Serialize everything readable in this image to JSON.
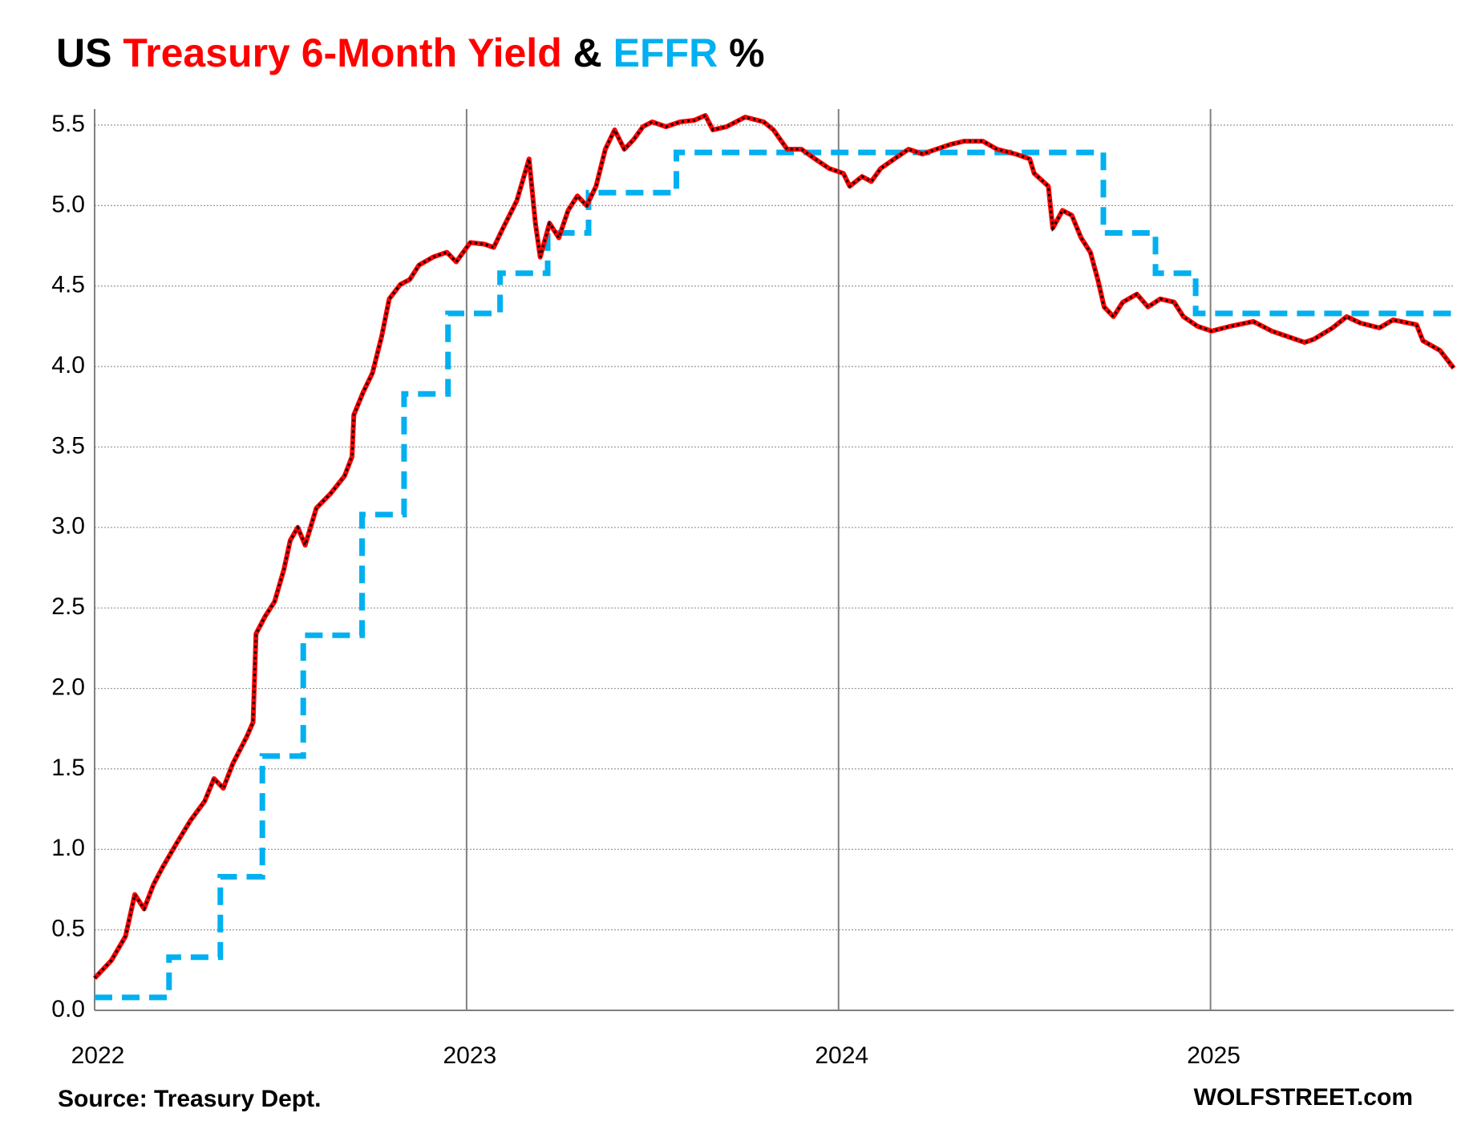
{
  "chart_data": {
    "type": "line",
    "title_parts": [
      "US",
      "&",
      "%"
    ],
    "source": "Source: Treasury Dept.",
    "watermark": "WOLFSTREET.com",
    "xlim": [
      2022,
      2025.654
    ],
    "xticks": [
      2022,
      2023,
      2024,
      2025
    ],
    "ylim": [
      0,
      5.5
    ],
    "yticks": [
      {
        "value": 0,
        "label": "0.0"
      },
      0.5,
      {
        "value": 1,
        "label": "1.0"
      },
      1.5,
      {
        "value": 2,
        "label": "2.0"
      },
      2.5,
      {
        "value": 3,
        "label": "3.0"
      },
      3.5,
      {
        "value": 4,
        "label": "4.0"
      },
      4.5,
      {
        "value": 5,
        "label": "5.0"
      },
      5.5
    ],
    "grid": true,
    "series": [
      {
        "name": "Treasury 6-Month Yield",
        "color": "#ff0000",
        "x": [
          2022.0,
          2022.045,
          2022.083,
          2022.108,
          2022.133,
          2022.158,
          2022.183,
          2022.221,
          2022.258,
          2022.296,
          2022.321,
          2022.346,
          2022.371,
          2022.409,
          2022.426,
          2022.434,
          2022.459,
          2022.484,
          2022.509,
          2022.526,
          2022.546,
          2022.566,
          2022.596,
          2022.634,
          2022.672,
          2022.692,
          2022.697,
          2022.722,
          2022.747,
          2022.772,
          2022.792,
          2022.822,
          2022.847,
          2022.872,
          2022.91,
          2022.947,
          2022.972,
          2023.01,
          2023.048,
          2023.073,
          2023.098,
          2023.135,
          2023.168,
          2023.185,
          2023.198,
          2023.223,
          2023.248,
          2023.273,
          2023.298,
          2023.323,
          2023.348,
          2023.373,
          2023.398,
          2023.424,
          2023.449,
          2023.474,
          2023.499,
          2023.536,
          2023.574,
          2023.612,
          2023.642,
          2023.662,
          2023.699,
          2023.749,
          2023.799,
          2023.825,
          2023.862,
          2023.9,
          2023.937,
          2023.975,
          2024.013,
          2024.03,
          2024.063,
          2024.088,
          2024.113,
          2024.15,
          2024.188,
          2024.226,
          2024.263,
          2024.301,
          2024.338,
          2024.388,
          2024.426,
          2024.476,
          2024.514,
          2024.526,
          2024.564,
          2024.576,
          2024.602,
          2024.627,
          2024.652,
          2024.677,
          2024.697,
          2024.714,
          2024.739,
          2024.764,
          2024.802,
          2024.832,
          2024.865,
          2024.902,
          2024.927,
          2024.965,
          2025.003,
          2025.053,
          2025.115,
          2025.165,
          2025.203,
          2025.253,
          2025.278,
          2025.328,
          2025.366,
          2025.403,
          2025.454,
          2025.491,
          2025.554,
          2025.571,
          2025.617,
          2025.654
        ],
        "values": [
          0.2,
          0.31,
          0.46,
          0.72,
          0.63,
          0.78,
          0.89,
          1.04,
          1.18,
          1.3,
          1.44,
          1.38,
          1.53,
          1.7,
          1.79,
          2.34,
          2.45,
          2.54,
          2.74,
          2.92,
          3.0,
          2.89,
          3.12,
          3.21,
          3.32,
          3.44,
          3.7,
          3.84,
          3.96,
          4.19,
          4.42,
          4.51,
          4.54,
          4.63,
          4.68,
          4.71,
          4.65,
          4.77,
          4.76,
          4.74,
          4.86,
          5.03,
          5.29,
          4.89,
          4.68,
          4.89,
          4.8,
          4.97,
          5.06,
          5.0,
          5.12,
          5.35,
          5.47,
          5.35,
          5.41,
          5.49,
          5.52,
          5.49,
          5.52,
          5.53,
          5.56,
          5.47,
          5.49,
          5.55,
          5.52,
          5.47,
          5.35,
          5.35,
          5.29,
          5.23,
          5.2,
          5.12,
          5.18,
          5.15,
          5.23,
          5.29,
          5.35,
          5.32,
          5.35,
          5.38,
          5.4,
          5.4,
          5.35,
          5.32,
          5.29,
          5.2,
          5.12,
          4.86,
          4.97,
          4.94,
          4.8,
          4.71,
          4.54,
          4.37,
          4.31,
          4.4,
          4.45,
          4.37,
          4.42,
          4.4,
          4.31,
          4.25,
          4.22,
          4.25,
          4.28,
          4.22,
          4.19,
          4.15,
          4.17,
          4.24,
          4.31,
          4.27,
          4.24,
          4.29,
          4.26,
          4.16,
          4.1,
          3.99
        ]
      },
      {
        "name": "EFFR",
        "color": "#00b0f0",
        "x": [
          2022,
          2022.2,
          2022.2,
          2022.338,
          2022.338,
          2022.451,
          2022.451,
          2022.561,
          2022.561,
          2022.719,
          2022.719,
          2022.832,
          2022.832,
          2022.95,
          2022.95,
          2023.09,
          2023.09,
          2023.218,
          2023.218,
          2023.328,
          2023.328,
          2023.564,
          2023.564,
          2024.712,
          2024.712,
          2024.852,
          2024.852,
          2024.96,
          2024.96,
          2025.654
        ],
        "values": [
          0.08,
          0.08,
          0.33,
          0.33,
          0.83,
          0.83,
          1.58,
          1.58,
          2.33,
          2.33,
          3.08,
          3.08,
          3.83,
          3.83,
          4.33,
          4.33,
          4.58,
          4.58,
          4.83,
          4.83,
          5.08,
          5.08,
          5.33,
          5.33,
          4.83,
          4.83,
          4.58,
          4.58,
          4.33,
          4.33
        ]
      }
    ]
  }
}
